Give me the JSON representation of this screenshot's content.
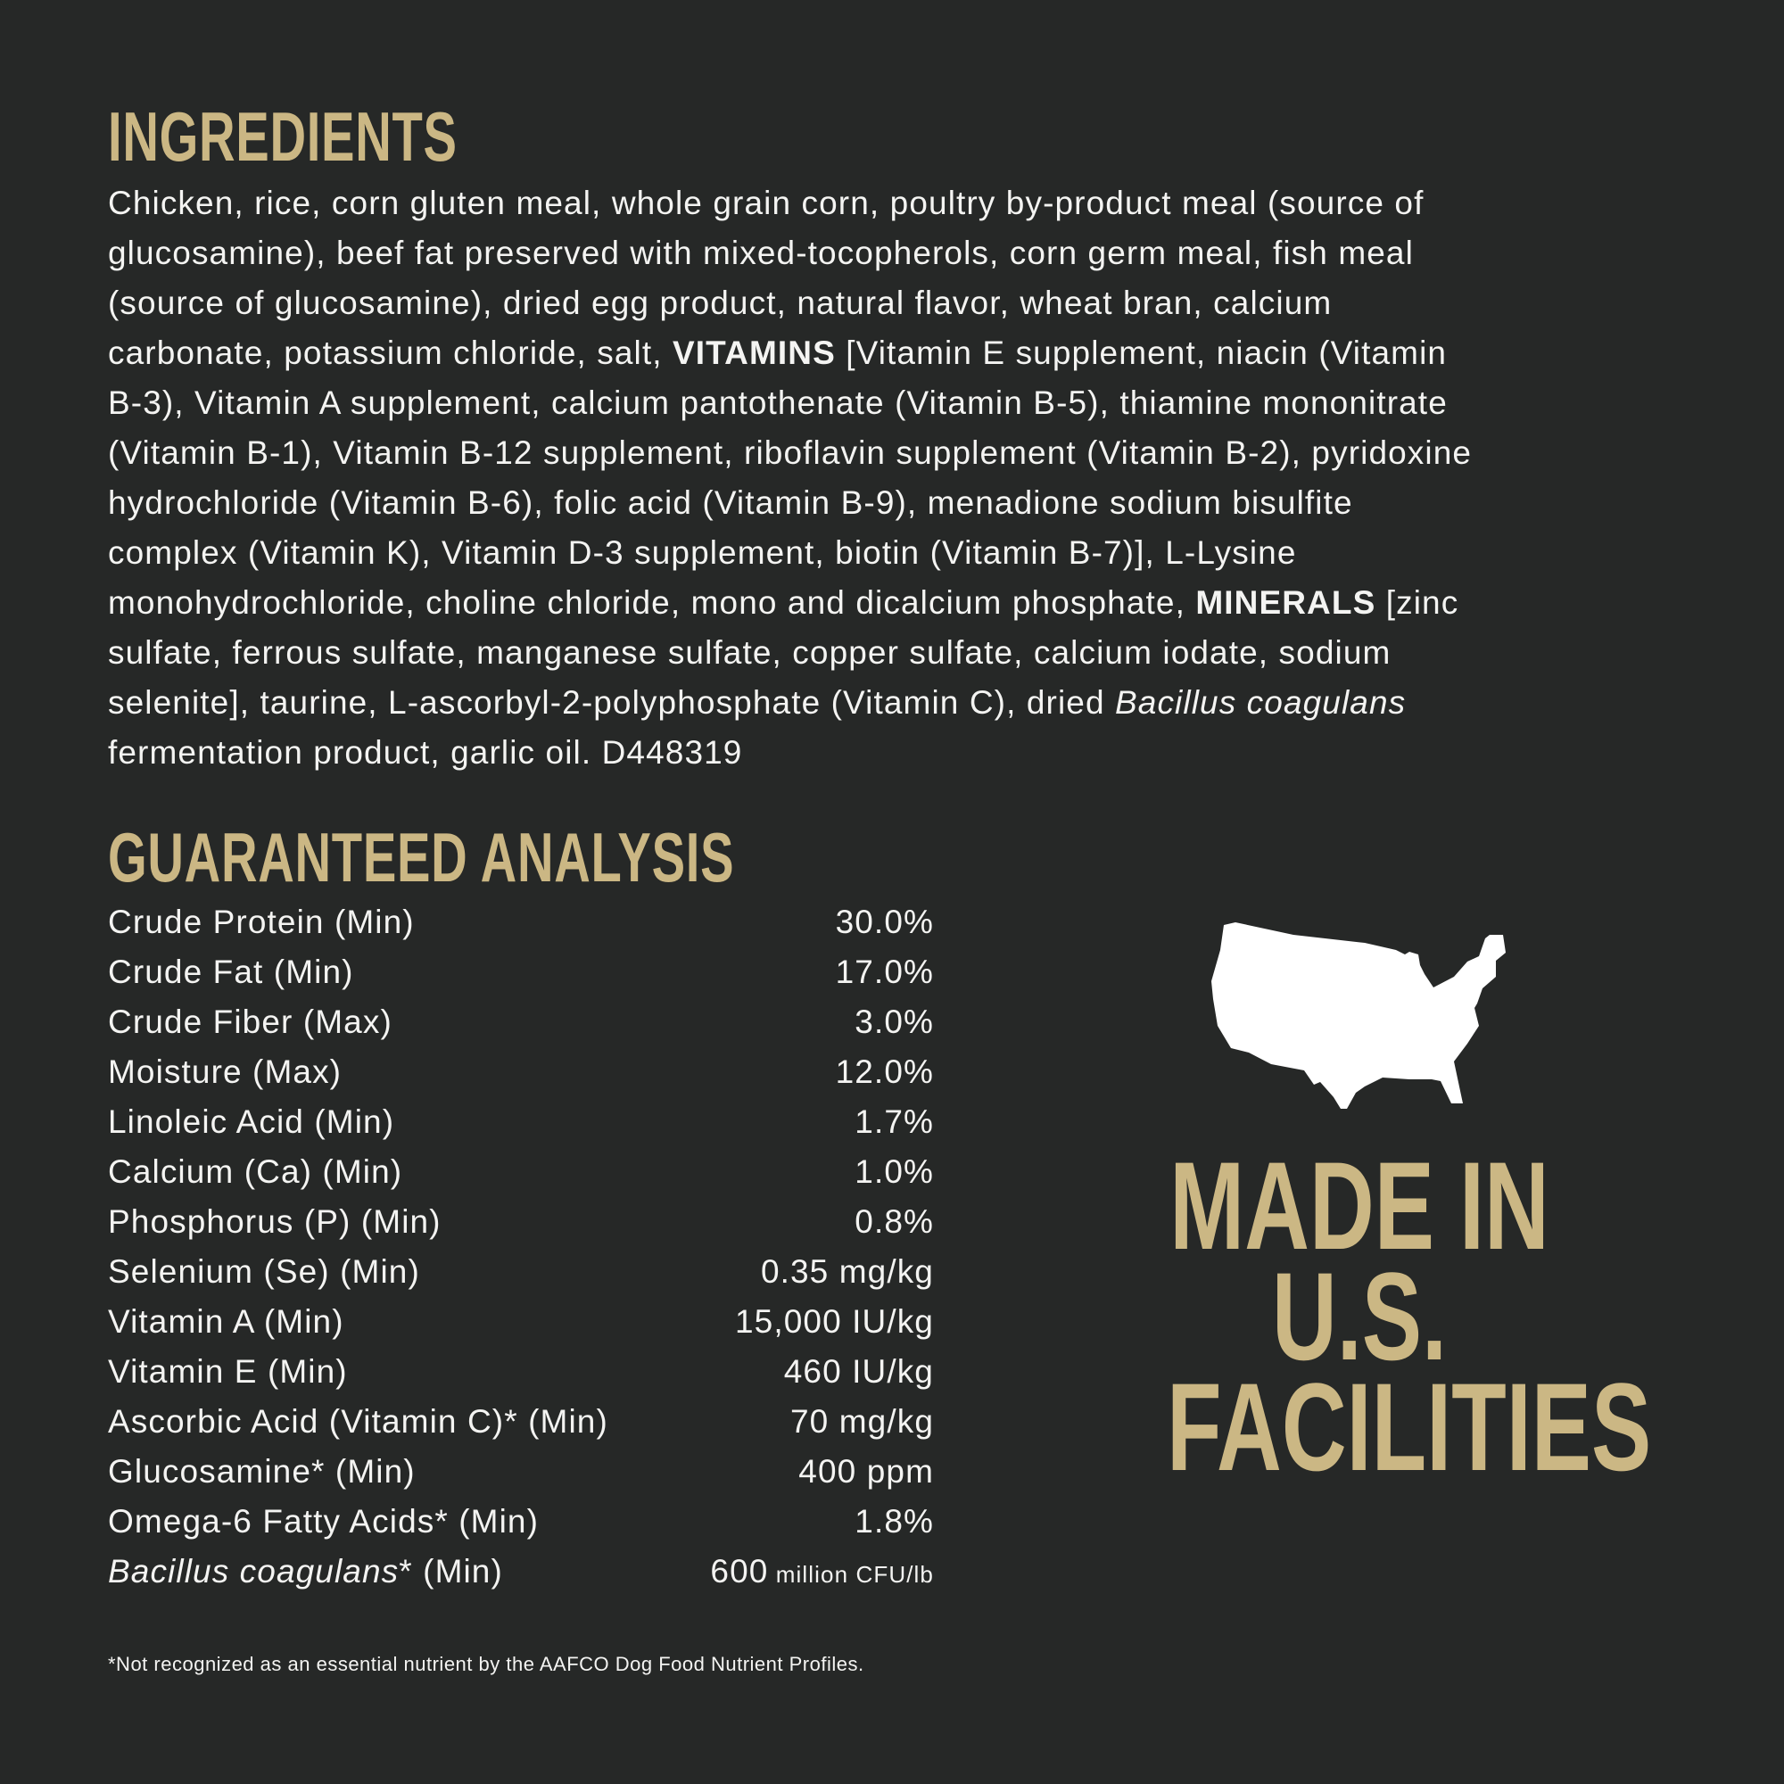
{
  "ingredients": {
    "title": "INGREDIENTS",
    "lines": [
      [
        {
          "t": "Chicken, rice, corn gluten meal, whole grain corn, poultry by-product meal (source of",
          "s": ""
        }
      ],
      [
        {
          "t": "glucosamine), beef fat preserved with mixed-tocopherols, corn germ meal, fish meal",
          "s": ""
        }
      ],
      [
        {
          "t": "(source of glucosamine), dried egg product, natural flavor, wheat bran, calcium",
          "s": ""
        }
      ],
      [
        {
          "t": "carbonate, potassium chloride, salt, ",
          "s": ""
        },
        {
          "t": "VITAMINS",
          "s": "b"
        },
        {
          "t": " [Vitamin E supplement, niacin (Vitamin",
          "s": ""
        }
      ],
      [
        {
          "t": "B-3), Vitamin A supplement, calcium pantothenate (Vitamin B-5), thiamine mononitrate",
          "s": ""
        }
      ],
      [
        {
          "t": "(Vitamin B-1), Vitamin B-12 supplement, riboflavin supplement (Vitamin B-2), pyridoxine",
          "s": ""
        }
      ],
      [
        {
          "t": "hydrochloride (Vitamin B-6), folic acid (Vitamin B-9), menadione sodium bisulfite",
          "s": ""
        }
      ],
      [
        {
          "t": "complex (Vitamin K), Vitamin D-3 supplement, biotin (Vitamin B-7)], L-Lysine",
          "s": ""
        }
      ],
      [
        {
          "t": "monohydrochloride, choline chloride, mono and dicalcium phosphate, ",
          "s": ""
        },
        {
          "t": "MINERALS",
          "s": "b"
        },
        {
          "t": " [zinc",
          "s": ""
        }
      ],
      [
        {
          "t": "sulfate, ferrous sulfate, manganese sulfate, copper sulfate, calcium iodate, sodium",
          "s": ""
        }
      ],
      [
        {
          "t": "selenite], taurine, L-ascorbyl-2-polyphosphate (Vitamin C), dried ",
          "s": ""
        },
        {
          "t": "Bacillus coagulans",
          "s": "i"
        }
      ],
      [
        {
          "t": "fermentation product, garlic oil. D448319",
          "s": ""
        }
      ]
    ]
  },
  "analysis": {
    "title": "GUARANTEED ANALYSIS",
    "rows": [
      {
        "label": "Crude Protein (Min)",
        "value": "30.0%"
      },
      {
        "label": "Crude Fat (Min)",
        "value": "17.0%"
      },
      {
        "label": "Crude Fiber (Max)",
        "value": "3.0%"
      },
      {
        "label": "Moisture (Max)",
        "value": "12.0%"
      },
      {
        "label": "Linoleic Acid (Min)",
        "value": "1.7%"
      },
      {
        "label": "Calcium (Ca) (Min)",
        "value": "1.0%"
      },
      {
        "label": "Phosphorus (P) (Min)",
        "value": "0.8%"
      },
      {
        "label": "Selenium (Se) (Min)",
        "value": "0.35 mg/kg"
      },
      {
        "label": "Vitamin A (Min)",
        "value": "15,000 IU/kg"
      },
      {
        "label": "Vitamin E (Min)",
        "value": "460 IU/kg"
      },
      {
        "label": "Ascorbic Acid (Vitamin C)* (Min)",
        "value": "70 mg/kg"
      },
      {
        "label": "Glucosamine* (Min)",
        "value": "400 ppm"
      },
      {
        "label": "Omega-6 Fatty Acids* (Min)",
        "value": "1.8%"
      }
    ],
    "last_row": {
      "label_italic": "Bacillus coagulans",
      "label_rest": "* (Min)",
      "value": "600",
      "unit": " million CFU/lb"
    }
  },
  "badge": {
    "icon": "usa-map-icon",
    "lines": [
      "MADE IN",
      "U.S.",
      "FACILITIES"
    ]
  },
  "footnote": "*Not recognized as an essential nutrient by the AAFCO Dog Food Nutrient Profiles.",
  "colors": {
    "background": "#262827",
    "accent": "#cbb784",
    "text": "#f4f4f2"
  }
}
